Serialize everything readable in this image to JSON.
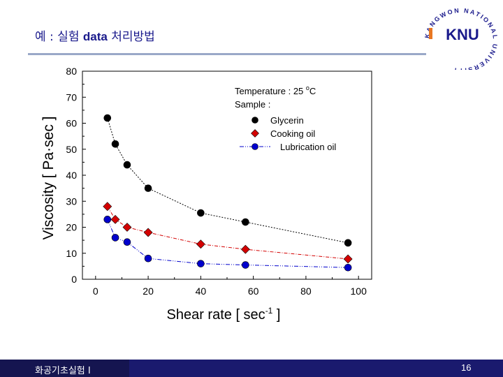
{
  "slide": {
    "title_prefix": "예 : 실험 ",
    "title_bold": "data",
    "title_suffix": " 처리방법",
    "footer_text": "화공기초실험 I",
    "page_number": "16"
  },
  "logo": {
    "main_text": "KNU",
    "ring_text": "KANGWON NATIONAL UNIVERSITY",
    "colors": {
      "main": "#1a1a8c",
      "accent": "#e87722"
    }
  },
  "colors": {
    "glycerin": "#000000",
    "cooking_oil": "#d40000",
    "lubrication_oil": "#0000cc",
    "footer": "#1a1a6e",
    "title": "#1a1a8c"
  },
  "chart_data": {
    "type": "line",
    "xlabel": "Shear rate [ sec",
    "xlabel_sup": "-1",
    "xlabel_end": " ]",
    "ylabel": "Viscosity [ Pa·sec ]",
    "xlim": [
      -5,
      105
    ],
    "ylim": [
      0,
      80
    ],
    "xticks": [
      "0",
      "20",
      "40",
      "60",
      "80",
      "100"
    ],
    "yticks": [
      "0",
      "10",
      "20",
      "30",
      "40",
      "50",
      "60",
      "70",
      "80"
    ],
    "annotation_line1": "Temperature : 25 ",
    "annotation_deg": "o",
    "annotation_unit": "C",
    "annotation_line2": "Sample :",
    "legend_position": "top-right",
    "series": [
      {
        "name": "Glycerin",
        "marker": "circle",
        "x": [
          4.5,
          7.5,
          12,
          20,
          40,
          57,
          96
        ],
        "y": [
          62,
          52,
          44,
          35,
          25.5,
          22,
          14
        ]
      },
      {
        "name": "Cooking oil",
        "marker": "diamond",
        "x": [
          4.5,
          7.5,
          12,
          20,
          40,
          57,
          96
        ],
        "y": [
          28,
          23,
          20,
          18,
          13.5,
          11.5,
          7.8
        ]
      },
      {
        "name": "Lubrication oil",
        "marker": "circle",
        "x": [
          4.5,
          7.5,
          12,
          20,
          40,
          57,
          96
        ],
        "y": [
          23,
          16,
          14.3,
          8,
          6,
          5.5,
          4.5
        ]
      }
    ]
  }
}
